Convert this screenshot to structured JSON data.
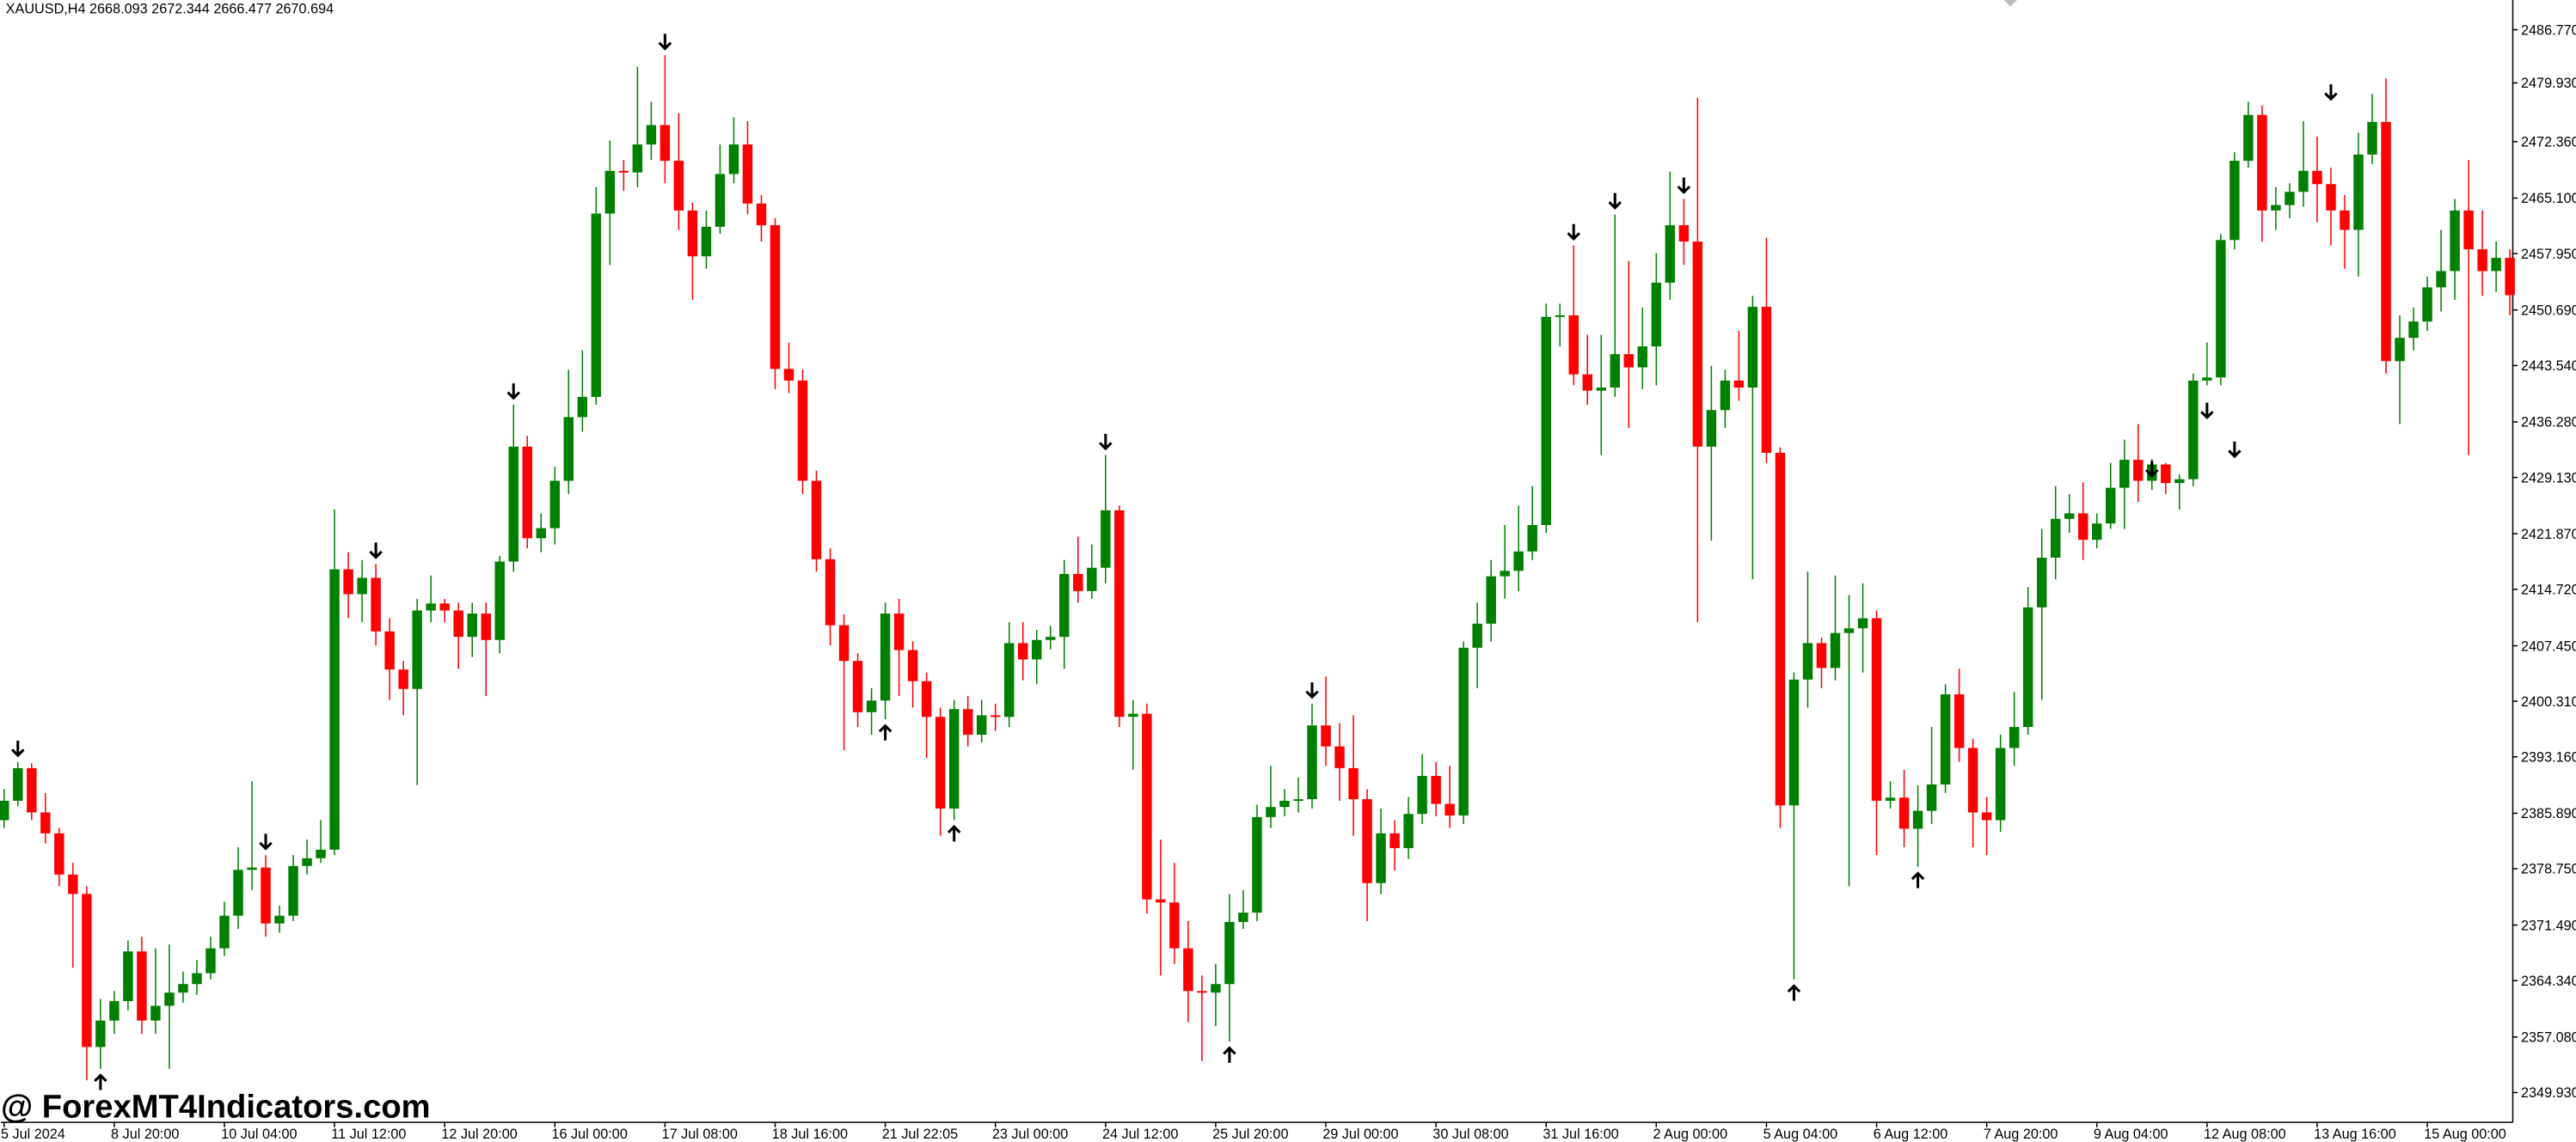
{
  "chart_data": {
    "type": "candlestick",
    "title": "XAUUSD,H4  2668.093 2672.344 2666.477 2670.694",
    "watermark": "@ ForexMT4Indicators.com",
    "up_color": "#008000",
    "down_color": "#ff0000",
    "arrow_color": "#000000",
    "ylim": [
      2346.1,
      2490.6
    ],
    "yticks": [
      {
        "value": 2486.77,
        "label": "2486.770"
      },
      {
        "value": 2479.93,
        "label": "2479.930"
      },
      {
        "value": 2472.36,
        "label": "2472.360"
      },
      {
        "value": 2465.1,
        "label": "2465.100"
      },
      {
        "value": 2457.95,
        "label": "2457.950"
      },
      {
        "value": 2450.69,
        "label": "2450.690"
      },
      {
        "value": 2443.54,
        "label": "2443.540"
      },
      {
        "value": 2436.28,
        "label": "2436.280"
      },
      {
        "value": 2429.13,
        "label": "2429.130"
      },
      {
        "value": 2421.87,
        "label": "2421.870"
      },
      {
        "value": 2414.72,
        "label": "2414.720"
      },
      {
        "value": 2407.45,
        "label": "2407.450"
      },
      {
        "value": 2400.31,
        "label": "2400.310"
      },
      {
        "value": 2393.16,
        "label": "2393.160"
      },
      {
        "value": 2385.89,
        "label": "2385.890"
      },
      {
        "value": 2378.75,
        "label": "2378.750"
      },
      {
        "value": 2371.49,
        "label": "2371.490"
      },
      {
        "value": 2364.34,
        "label": "2364.340"
      },
      {
        "value": 2357.08,
        "label": "2357.080"
      },
      {
        "value": 2349.93,
        "label": "2349.930"
      }
    ],
    "categories": [
      "5 Jul 2024",
      null,
      null,
      null,
      null,
      null,
      null,
      null,
      "8 Jul 20:00",
      null,
      null,
      null,
      null,
      null,
      null,
      null,
      "10 Jul 04:00",
      null,
      null,
      null,
      null,
      null,
      null,
      null,
      "11 Jul 12:00",
      null,
      null,
      null,
      null,
      null,
      null,
      null,
      "12 Jul 20:00",
      null,
      null,
      null,
      null,
      null,
      null,
      null,
      "16 Jul 00:00",
      null,
      null,
      null,
      null,
      null,
      null,
      null,
      "17 Jul 08:00",
      null,
      null,
      null,
      null,
      null,
      null,
      null,
      "18 Jul 16:00",
      null,
      null,
      null,
      null,
      null,
      null,
      null,
      "21 Jul 22:05",
      null,
      null,
      null,
      null,
      null,
      null,
      null,
      "23 Jul 00:00",
      null,
      null,
      null,
      null,
      null,
      null,
      null,
      "24 Jul 12:00",
      null,
      null,
      null,
      null,
      null,
      null,
      null,
      "25 Jul 20:00",
      null,
      null,
      null,
      null,
      null,
      null,
      null,
      "29 Jul 00:00",
      null,
      null,
      null,
      null,
      null,
      null,
      null,
      "30 Jul 08:00",
      null,
      null,
      null,
      null,
      null,
      null,
      null,
      "31 Jul 16:00",
      null,
      null,
      null,
      null,
      null,
      null,
      null,
      "2 Aug 00:00",
      null,
      null,
      null,
      null,
      null,
      null,
      null,
      "5 Aug 04:00",
      null,
      null,
      null,
      null,
      null,
      null,
      null,
      "6 Aug 12:00",
      null,
      null,
      null,
      null,
      null,
      null,
      null,
      "7 Aug 20:00",
      null,
      null,
      null,
      null,
      null,
      null,
      null,
      "9 Aug 04:00",
      null,
      null,
      null,
      null,
      null,
      null,
      null,
      "12 Aug 08:00",
      null,
      null,
      null,
      null,
      null,
      null,
      null,
      "13 Aug 16:00",
      null,
      null,
      null,
      null,
      null,
      null,
      null,
      "15 Aug 00:00",
      null,
      null,
      null,
      null,
      null,
      null
    ],
    "open": [
      2385.0,
      2387.5,
      2391.7,
      2386.0,
      2383.3,
      2378.0,
      2375.5,
      2355.8,
      2359.2,
      2361.7,
      2368.1,
      2359.2,
      2361.1,
      2362.8,
      2363.9,
      2365.3,
      2368.5,
      2372.7,
      2378.6,
      2378.9,
      2371.7,
      2372.7,
      2379.1,
      2380.1,
      2381.2,
      2417.3,
      2414.1,
      2416.2,
      2409.3,
      2404.4,
      2401.9,
      2412.0,
      2412.9,
      2412.0,
      2408.6,
      2411.6,
      2408.2,
      2418.3,
      2433.1,
      2421.3,
      2422.6,
      2428.7,
      2436.9,
      2439.5,
      2463.1,
      2468.6,
      2468.4,
      2472.0,
      2474.5,
      2469.9,
      2463.5,
      2457.6,
      2461.4,
      2468.2,
      2472.0,
      2464.4,
      2461.6,
      2443.1,
      2441.6,
      2428.7,
      2418.6,
      2410.1,
      2405.5,
      2398.9,
      2400.4,
      2411.6,
      2406.9,
      2402.9,
      2398.3,
      2386.5,
      2399.3,
      2396.0,
      2398.5,
      2398.3,
      2407.8,
      2405.7,
      2408.2,
      2408.6,
      2416.7,
      2414.5,
      2417.5,
      2424.9,
      2398.3,
      2398.7,
      2374.8,
      2374.4,
      2368.5,
      2363.0,
      2362.8,
      2363.9,
      2371.9,
      2373.1,
      2385.4,
      2386.7,
      2387.5,
      2387.7,
      2397.2,
      2394.5,
      2391.7,
      2387.7,
      2376.9,
      2383.3,
      2381.4,
      2385.8,
      2390.7,
      2387.1,
      2385.6,
      2407.2,
      2410.3,
      2416.4,
      2417.1,
      2419.6,
      2423.0,
      2449.8,
      2450.0,
      2442.4,
      2440.3,
      2440.7,
      2445.0,
      2443.3,
      2446.0,
      2454.2,
      2461.6,
      2459.5,
      2433.1,
      2437.8,
      2441.6,
      2440.7,
      2451.1,
      2432.3,
      2386.9,
      2403.1,
      2407.8,
      2404.6,
      2409.1,
      2409.7,
      2411.0,
      2387.5,
      2387.9,
      2383.9,
      2386.2,
      2389.6,
      2401.2,
      2394.3,
      2386.0,
      2385.0,
      2394.3,
      2397.0,
      2412.4,
      2418.8,
      2423.8,
      2424.5,
      2421.1,
      2423.2,
      2427.8,
      2431.4,
      2428.7,
      2430.8,
      2428.4,
      2428.9,
      2441.6,
      2442.0,
      2459.7,
      2469.9,
      2475.8,
      2463.5,
      2464.2,
      2465.9,
      2468.6,
      2466.9,
      2463.5,
      2461.0,
      2470.7,
      2474.9,
      2444.1,
      2447.1,
      2449.2,
      2453.6,
      2455.7,
      2463.5,
      2458.5,
      2455.7,
      2457.4
    ],
    "high": [
      2389.0,
      2392.5,
      2392.3,
      2388.5,
      2384.0,
      2379.5,
      2376.5,
      2362.0,
      2363.0,
      2369.5,
      2370.0,
      2368.5,
      2369.0,
      2365.5,
      2367.0,
      2370.0,
      2374.5,
      2381.5,
      2390.0,
      2380.5,
      2374.0,
      2380.5,
      2382.5,
      2385.0,
      2425.0,
      2419.5,
      2418.5,
      2418.0,
      2411.0,
      2405.5,
      2413.5,
      2416.5,
      2413.5,
      2413.0,
      2413.0,
      2413.0,
      2419.0,
      2438.5,
      2434.5,
      2424.5,
      2430.5,
      2443.0,
      2445.5,
      2466.5,
      2472.5,
      2470.0,
      2482.0,
      2477.5,
      2483.5,
      2476.0,
      2464.5,
      2463.5,
      2472.0,
      2475.5,
      2475.0,
      2465.5,
      2462.5,
      2446.5,
      2443.0,
      2430.0,
      2420.0,
      2411.5,
      2406.5,
      2402.0,
      2413.0,
      2413.5,
      2408.0,
      2404.0,
      2399.5,
      2400.5,
      2401.0,
      2400.5,
      2400.0,
      2410.5,
      2410.5,
      2409.5,
      2410.0,
      2418.5,
      2421.5,
      2420.5,
      2432.0,
      2425.5,
      2400.5,
      2400.0,
      2382.5,
      2379.5,
      2372.0,
      2365.0,
      2366.5,
      2375.5,
      2376.0,
      2387.0,
      2392.0,
      2389.0,
      2390.5,
      2400.0,
      2403.5,
      2397.5,
      2398.5,
      2389.0,
      2386.5,
      2385.0,
      2388.0,
      2393.5,
      2392.5,
      2392.0,
      2408.0,
      2413.0,
      2418.5,
      2423.0,
      2425.5,
      2428.0,
      2451.5,
      2451.5,
      2459.0,
      2447.5,
      2447.5,
      2463.0,
      2457.0,
      2451.0,
      2458.0,
      2468.5,
      2465.0,
      2478.0,
      2443.5,
      2443.0,
      2448.0,
      2452.5,
      2460.0,
      2433.0,
      2404.0,
      2417.0,
      2408.5,
      2416.5,
      2414.0,
      2415.5,
      2412.0,
      2390.0,
      2391.5,
      2389.5,
      2397.0,
      2402.5,
      2404.5,
      2395.5,
      2388.0,
      2396.0,
      2401.5,
      2415.0,
      2422.5,
      2428.0,
      2427.0,
      2428.5,
      2424.5,
      2431.0,
      2434.0,
      2436.0,
      2431.5,
      2431.0,
      2429.5,
      2442.5,
      2446.5,
      2460.5,
      2471.0,
      2477.5,
      2477.0,
      2466.5,
      2467.0,
      2475.0,
      2473.0,
      2469.0,
      2465.5,
      2473.5,
      2478.5,
      2480.5,
      2450.0,
      2451.0,
      2455.0,
      2461.0,
      2465.0,
      2470.0,
      2463.5,
      2459.5,
      2458.5
    ],
    "low": [
      2384.0,
      2386.8,
      2385.0,
      2382.0,
      2376.5,
      2366.0,
      2351.5,
      2353.0,
      2357.5,
      2360.5,
      2357.5,
      2357.5,
      2353.0,
      2361.5,
      2362.5,
      2364.5,
      2367.5,
      2371.0,
      2376.0,
      2370.0,
      2370.5,
      2372.0,
      2378.0,
      2379.5,
      2380.5,
      2411.0,
      2410.5,
      2407.5,
      2400.5,
      2398.5,
      2389.5,
      2410.5,
      2410.5,
      2404.5,
      2406.0,
      2401.0,
      2406.5,
      2417.0,
      2420.0,
      2419.5,
      2420.5,
      2427.0,
      2435.0,
      2438.5,
      2456.5,
      2466.0,
      2466.5,
      2470.0,
      2467.0,
      2461.0,
      2452.0,
      2456.0,
      2460.5,
      2467.0,
      2463.0,
      2459.5,
      2440.5,
      2440.0,
      2427.0,
      2417.0,
      2407.5,
      2394.0,
      2397.0,
      2396.0,
      2398.0,
      2401.0,
      2399.5,
      2393.0,
      2383.0,
      2385.0,
      2394.5,
      2395.0,
      2396.5,
      2397.0,
      2403.0,
      2402.5,
      2407.0,
      2404.5,
      2413.0,
      2413.5,
      2415.5,
      2397.0,
      2391.5,
      2373.0,
      2365.0,
      2366.5,
      2359.0,
      2354.0,
      2358.5,
      2356.5,
      2371.0,
      2372.0,
      2384.0,
      2385.5,
      2386.0,
      2386.5,
      2392.0,
      2387.5,
      2383.0,
      2372.0,
      2375.5,
      2378.5,
      2380.0,
      2384.5,
      2385.5,
      2384.0,
      2384.5,
      2402.0,
      2408.0,
      2413.5,
      2414.5,
      2418.5,
      2422.0,
      2446.0,
      2441.0,
      2438.5,
      2432.0,
      2439.5,
      2435.5,
      2440.5,
      2441.0,
      2452.0,
      2456.5,
      2410.5,
      2421.0,
      2435.5,
      2439.0,
      2416.0,
      2431.0,
      2384.0,
      2364.5,
      2399.5,
      2402.0,
      2403.0,
      2376.5,
      2404.0,
      2380.5,
      2386.5,
      2381.5,
      2379.0,
      2384.5,
      2388.5,
      2392.5,
      2381.5,
      2380.5,
      2383.5,
      2392.0,
      2396.0,
      2400.5,
      2416.0,
      2422.0,
      2418.5,
      2420.0,
      2422.5,
      2422.5,
      2426.0,
      2427.5,
      2427.0,
      2425.0,
      2428.0,
      2441.0,
      2441.0,
      2458.5,
      2469.0,
      2459.5,
      2461.0,
      2462.5,
      2464.0,
      2462.0,
      2459.0,
      2456.0,
      2455.0,
      2469.5,
      2442.5,
      2436.0,
      2445.5,
      2448.0,
      2450.5,
      2452.0,
      2432.0,
      2452.5,
      2453.0,
      2450.0
    ],
    "close": [
      2387.5,
      2391.7,
      2386.0,
      2383.3,
      2378.0,
      2375.5,
      2355.8,
      2359.2,
      2361.7,
      2368.1,
      2359.2,
      2361.1,
      2362.8,
      2363.9,
      2365.3,
      2368.5,
      2372.7,
      2378.6,
      2378.9,
      2371.7,
      2372.7,
      2379.1,
      2380.1,
      2381.2,
      2417.3,
      2414.1,
      2416.2,
      2409.3,
      2404.4,
      2401.9,
      2412.0,
      2412.9,
      2412.0,
      2408.6,
      2411.6,
      2408.2,
      2418.3,
      2433.1,
      2421.3,
      2422.6,
      2428.7,
      2436.9,
      2439.5,
      2463.1,
      2468.6,
      2468.4,
      2472.0,
      2474.5,
      2469.9,
      2463.5,
      2457.6,
      2461.4,
      2468.2,
      2472.0,
      2464.4,
      2461.6,
      2443.1,
      2441.6,
      2428.7,
      2418.6,
      2410.1,
      2405.5,
      2398.9,
      2400.4,
      2411.6,
      2406.9,
      2402.9,
      2398.3,
      2386.5,
      2399.3,
      2396.0,
      2398.5,
      2398.3,
      2407.8,
      2405.7,
      2408.2,
      2408.6,
      2416.7,
      2414.5,
      2417.5,
      2424.9,
      2398.3,
      2398.7,
      2374.8,
      2374.4,
      2368.5,
      2363.0,
      2362.8,
      2363.9,
      2371.9,
      2373.1,
      2385.4,
      2386.7,
      2387.5,
      2387.7,
      2397.2,
      2394.5,
      2391.7,
      2387.7,
      2376.9,
      2383.3,
      2381.4,
      2385.8,
      2390.7,
      2387.1,
      2385.6,
      2407.2,
      2410.3,
      2416.4,
      2417.1,
      2419.6,
      2423.0,
      2449.8,
      2450.0,
      2442.4,
      2440.3,
      2440.7,
      2445.0,
      2443.3,
      2446.0,
      2454.2,
      2461.6,
      2459.5,
      2433.1,
      2437.8,
      2441.6,
      2440.7,
      2451.1,
      2432.3,
      2386.9,
      2403.1,
      2407.8,
      2404.6,
      2409.1,
      2409.7,
      2411.0,
      2387.5,
      2387.9,
      2383.9,
      2386.2,
      2389.6,
      2401.2,
      2394.3,
      2386.0,
      2385.0,
      2394.3,
      2397.0,
      2412.4,
      2418.8,
      2423.8,
      2424.5,
      2421.1,
      2423.2,
      2427.8,
      2431.4,
      2428.7,
      2430.8,
      2428.4,
      2428.9,
      2441.6,
      2442.0,
      2459.7,
      2469.9,
      2475.8,
      2463.5,
      2464.2,
      2465.9,
      2468.6,
      2466.9,
      2463.5,
      2461.0,
      2470.7,
      2474.9,
      2444.1,
      2447.1,
      2449.2,
      2453.6,
      2455.7,
      2463.5,
      2458.5,
      2455.7,
      2457.4,
      2452.6
    ],
    "down_arrows": [
      null,
      2392.5,
      null,
      null,
      null,
      null,
      null,
      null,
      null,
      null,
      null,
      null,
      null,
      null,
      null,
      null,
      null,
      null,
      null,
      2380.5,
      null,
      null,
      null,
      null,
      null,
      null,
      null,
      2418.0,
      null,
      null,
      null,
      null,
      null,
      null,
      null,
      null,
      null,
      2438.5,
      null,
      null,
      null,
      null,
      null,
      null,
      null,
      null,
      null,
      null,
      2483.5,
      null,
      null,
      null,
      null,
      null,
      null,
      null,
      null,
      null,
      null,
      null,
      null,
      null,
      null,
      null,
      null,
      null,
      null,
      null,
      null,
      null,
      null,
      null,
      null,
      null,
      null,
      null,
      null,
      null,
      null,
      null,
      2432.0,
      null,
      null,
      null,
      null,
      null,
      null,
      null,
      null,
      null,
      null,
      null,
      null,
      null,
      null,
      2400.0,
      null,
      null,
      null,
      null,
      null,
      null,
      null,
      null,
      null,
      null,
      null,
      null,
      null,
      null,
      null,
      null,
      null,
      null,
      2459.0,
      null,
      null,
      2463.0,
      null,
      null,
      null,
      null,
      2465.0,
      null,
      null,
      null,
      null,
      null,
      null,
      null,
      null,
      null,
      null,
      null,
      null,
      null,
      null,
      null,
      null,
      null,
      null,
      null,
      null,
      null,
      null,
      null,
      null,
      null,
      null,
      null,
      null,
      null,
      null,
      null,
      null,
      null,
      2428.5,
      null,
      null,
      null,
      2436.0,
      null,
      2431.0,
      null,
      null,
      null,
      null,
      null,
      null,
      2477.0,
      null,
      null,
      null,
      null,
      null,
      null,
      null,
      null,
      null,
      null,
      null,
      null,
      null,
      null,
      null,
      null,
      null,
      null
    ],
    "up_arrows": [
      null,
      null,
      null,
      null,
      null,
      null,
      null,
      2353.0,
      null,
      null,
      null,
      null,
      null,
      null,
      null,
      null,
      null,
      null,
      null,
      null,
      null,
      null,
      null,
      null,
      null,
      null,
      null,
      null,
      null,
      null,
      null,
      null,
      null,
      null,
      null,
      null,
      null,
      null,
      null,
      null,
      null,
      null,
      null,
      null,
      null,
      null,
      null,
      null,
      null,
      null,
      null,
      null,
      null,
      null,
      null,
      null,
      null,
      null,
      null,
      null,
      null,
      null,
      null,
      null,
      2398.0,
      null,
      null,
      null,
      null,
      2385.0,
      null,
      null,
      null,
      null,
      null,
      null,
      null,
      null,
      null,
      null,
      null,
      null,
      null,
      null,
      null,
      null,
      null,
      null,
      null,
      2356.5,
      null,
      null,
      null,
      null,
      null,
      null,
      null,
      null,
      null,
      null,
      null,
      null,
      null,
      null,
      null,
      null,
      null,
      null,
      null,
      null,
      null,
      null,
      null,
      null,
      null,
      null,
      null,
      null,
      null,
      null,
      null,
      null,
      null,
      null,
      null,
      null,
      null,
      null,
      null,
      null,
      2364.5,
      null,
      null,
      null,
      null,
      null,
      null,
      null,
      null,
      2379.0,
      null,
      null,
      null,
      null,
      null,
      null,
      null,
      null,
      null,
      null,
      null,
      null,
      null,
      null,
      null,
      null,
      null,
      null,
      null,
      null,
      null,
      null,
      null,
      null,
      null,
      null,
      null,
      null,
      null,
      null,
      null,
      null,
      null,
      null,
      null,
      null,
      null,
      null,
      null,
      null,
      null,
      null,
      null,
      null,
      null,
      null,
      null
    ]
  }
}
